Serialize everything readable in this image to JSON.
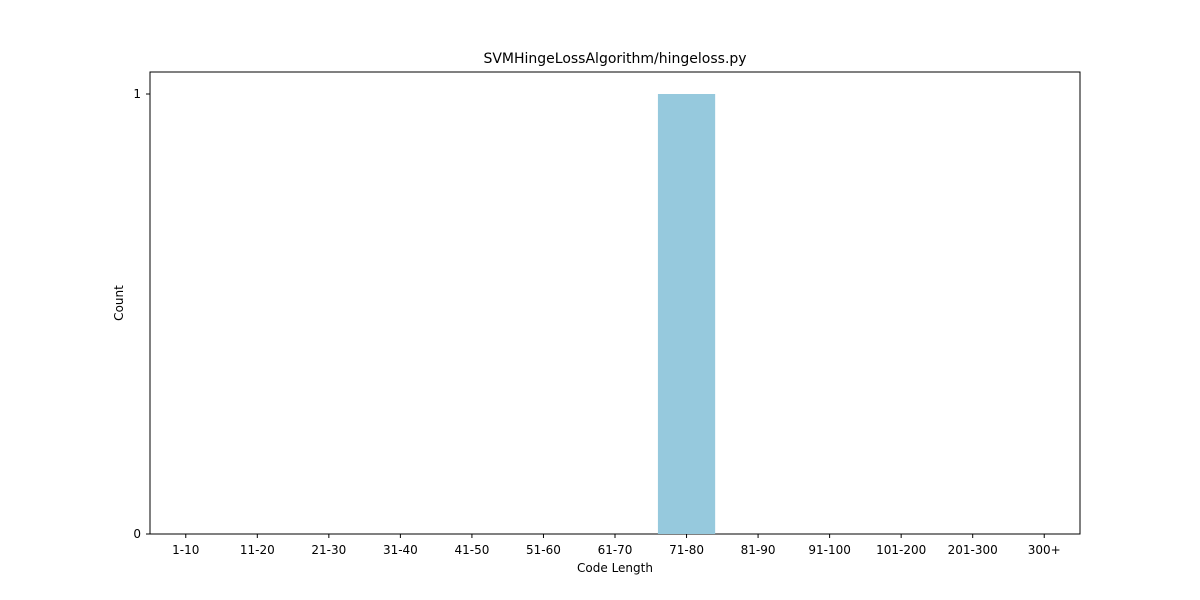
{
  "chart_data": {
    "type": "bar",
    "title": "SVMHingeLossAlgorithm/hingeloss.py",
    "xlabel": "Code Length",
    "ylabel": "Count",
    "categories": [
      "1-10",
      "11-20",
      "21-30",
      "31-40",
      "41-50",
      "51-60",
      "61-70",
      "71-80",
      "81-90",
      "91-100",
      "101-200",
      "201-300",
      "300+"
    ],
    "values": [
      0,
      0,
      0,
      0,
      0,
      0,
      0,
      1,
      0,
      0,
      0,
      0,
      0
    ],
    "yticks": [
      "0",
      "1"
    ],
    "ylim": [
      0,
      1.05
    ],
    "grid": false,
    "bar_color": "#96c9dd"
  }
}
